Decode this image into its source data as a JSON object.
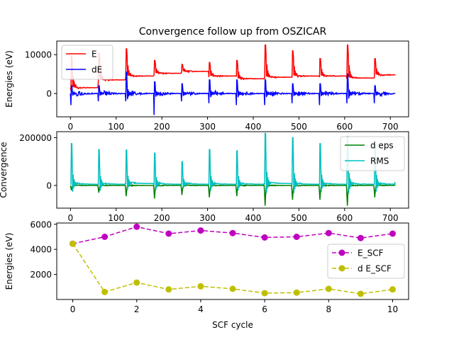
{
  "figure_title": "Convergence follow up from OSZICAR",
  "chart_data": [
    {
      "type": "line",
      "title": "Convergence follow up from OSZICAR",
      "xlabel": "",
      "ylabel": "Energies (eV)",
      "xlim": [
        -30,
        740
      ],
      "ylim": [
        -6000,
        13500
      ],
      "xticks": [
        0,
        100,
        200,
        300,
        400,
        500,
        600,
        700
      ],
      "yticks": [
        0,
        10000
      ],
      "legend_position": "upper-left",
      "cycle_boundaries": [
        0,
        60,
        120,
        182,
        242,
        302,
        362,
        424,
        484,
        544,
        604,
        664,
        710
      ],
      "series": [
        {
          "name": "E",
          "color": "#ff0000",
          "baseline": [
            1500,
            3500,
            4500,
            5200,
            5700,
            4500,
            3800,
            4200,
            4500,
            4500,
            4000,
            4800
          ],
          "peaks": [
            9500,
            10500,
            11500,
            8500,
            7500,
            8000,
            8500,
            12500,
            11000,
            9000,
            12500,
            9000
          ],
          "dips": [
            -800,
            -500,
            -300,
            -300,
            -300,
            -300,
            0,
            -300,
            0,
            -300,
            -300,
            0
          ],
          "end_value": 4900
        },
        {
          "name": "dE",
          "color": "#0000ff",
          "baseline": [
            0,
            0,
            0,
            0,
            0,
            0,
            0,
            0,
            0,
            0,
            0,
            0
          ],
          "peaks": [
            2000,
            2000,
            5500,
            3000,
            2500,
            3500,
            3500,
            3500,
            2500,
            2500,
            5000,
            2000
          ],
          "dips": [
            -3000,
            -2000,
            -2000,
            -5500,
            -2000,
            -2500,
            -3000,
            -3000,
            -2500,
            -3000,
            -2500,
            -2500
          ],
          "end_value": 0
        }
      ]
    },
    {
      "type": "line",
      "title": "",
      "xlabel": "",
      "ylabel": "Convergence",
      "xlim": [
        -30,
        740
      ],
      "ylim": [
        -95000,
        225000
      ],
      "xticks": [
        0,
        100,
        200,
        300,
        400,
        500,
        600,
        700
      ],
      "yticks": [
        0,
        200000
      ],
      "legend_position": "upper-right",
      "cycle_boundaries": [
        0,
        60,
        120,
        182,
        242,
        302,
        362,
        424,
        484,
        544,
        604,
        664,
        710
      ],
      "series": [
        {
          "name": "d eps",
          "color": "#008000",
          "baseline": [
            0,
            0,
            0,
            0,
            0,
            0,
            0,
            0,
            0,
            0,
            0,
            0
          ],
          "peaks": [
            0,
            0,
            0,
            0,
            0,
            0,
            0,
            0,
            0,
            0,
            0,
            0
          ],
          "dips": [
            -20000,
            -30000,
            -45000,
            -55000,
            -40000,
            -50000,
            -45000,
            -85000,
            -60000,
            -60000,
            -85000,
            -50000
          ],
          "end_value": 0
        },
        {
          "name": "RMS",
          "color": "#00bfbf",
          "baseline": [
            5000,
            5000,
            8000,
            5000,
            5000,
            5000,
            5000,
            8000,
            5000,
            5000,
            5000,
            5000
          ],
          "peaks": [
            170000,
            145000,
            140000,
            130000,
            95000,
            145000,
            140000,
            210000,
            195000,
            170000,
            200000,
            165000
          ],
          "dips": [
            0,
            0,
            0,
            0,
            0,
            0,
            0,
            0,
            0,
            0,
            0,
            0
          ],
          "end_value": 15000
        }
      ]
    },
    {
      "type": "line",
      "title": "",
      "xlabel": "SCF cycle",
      "ylabel": "Energies (eV)",
      "xlim": [
        -0.5,
        10.5
      ],
      "ylim": [
        0,
        6100
      ],
      "xticks": [
        0,
        2,
        4,
        6,
        8,
        10
      ],
      "yticks": [
        2000,
        4000,
        6000
      ],
      "legend_position": "center-right",
      "x": [
        0,
        1,
        2,
        3,
        4,
        5,
        6,
        7,
        8,
        9,
        10
      ],
      "series": [
        {
          "name": "E_SCF",
          "color": "#bf00bf",
          "values": [
            4450,
            5000,
            5800,
            5250,
            5500,
            5300,
            4950,
            5000,
            5300,
            4900,
            5250
          ]
        },
        {
          "name": "d E_SCF",
          "color": "#bfbf00",
          "values": [
            4450,
            600,
            1350,
            800,
            1050,
            850,
            500,
            550,
            850,
            450,
            800
          ]
        }
      ]
    }
  ]
}
